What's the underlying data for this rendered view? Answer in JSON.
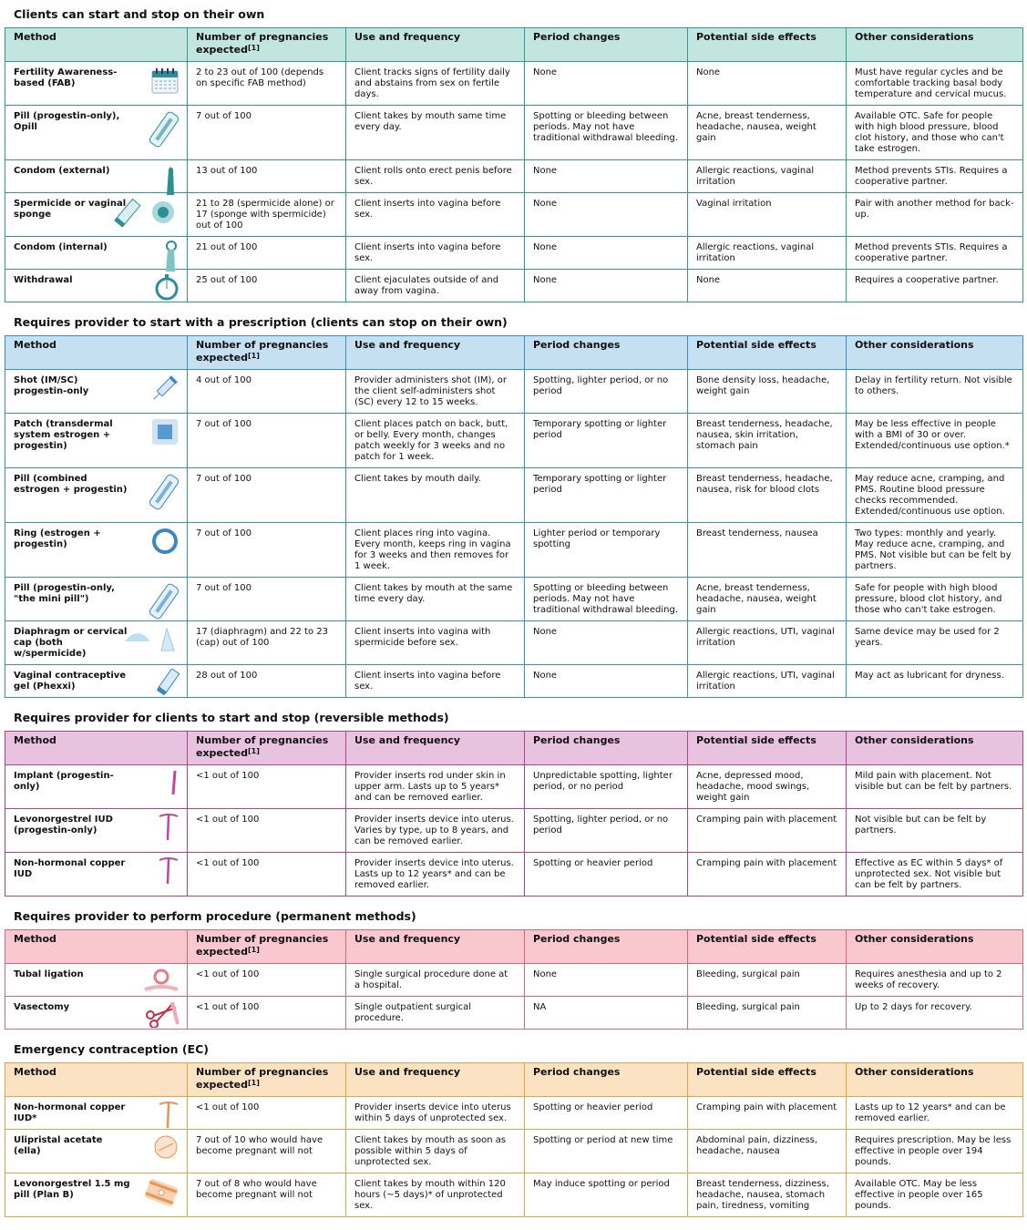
{
  "columns": {
    "method": "Method",
    "pregnancies": "Number of pregnancies expected",
    "footnote": "[1]",
    "use": "Use and frequency",
    "period": "Period changes",
    "side": "Potential side effects",
    "other": "Other considerations"
  },
  "sections": [
    {
      "title": "Clients can start and stop on their own",
      "header_bg": "#c2e6df",
      "border": "#2f9c8f",
      "icon_color": "#2b8f96",
      "rows": [
        {
          "method": "Fertility Awareness-based (FAB)",
          "icon": "calendar-icon",
          "pregnancies": "2 to 23 out of 100 (depends on specific FAB method)",
          "use": "Client tracks signs of fertility daily and abstains from sex on fertile days.",
          "period": "None",
          "side": "None",
          "other": "Must have regular cycles and be comfortable tracking basal body temperature and cervical mucus."
        },
        {
          "method": "Pill (progestin-only), Opill",
          "icon": "pill-pack-icon",
          "pregnancies": "7 out of 100",
          "use": "Client takes by mouth same time every day.",
          "period": "Spotting or bleeding between periods. May not have traditional withdrawal bleeding.",
          "side": "Acne, breast tenderness, headache, nausea, weight gain",
          "other": "Available OTC. Safe for people with high blood pressure, blood clot history, and those who can't take estrogen."
        },
        {
          "method": "Condom (external)",
          "icon": "external-condom-icon",
          "pregnancies": "13 out of 100",
          "use": "Client rolls onto erect penis before sex.",
          "period": "None",
          "side": "Allergic reactions, vaginal irritation",
          "other": "Method prevents STIs. Requires a cooperative partner."
        },
        {
          "method": "Spermicide or vaginal sponge",
          "icon": "spermicide-sponge-icon",
          "pregnancies": "21 to 28 (spermicide alone) or 17 (sponge with spermicide) out of 100",
          "use": "Client inserts into vagina before sex.",
          "period": "None",
          "side": "Vaginal irritation",
          "other": "Pair with another method for back-up."
        },
        {
          "method": "Condom (internal)",
          "icon": "internal-condom-icon",
          "pregnancies": "21 out of 100",
          "use": "Client inserts into vagina before sex.",
          "period": "None",
          "side": "Allergic reactions, vaginal irritation",
          "other": "Method prevents STIs. Requires a cooperative partner."
        },
        {
          "method": "Withdrawal",
          "icon": "stopwatch-icon",
          "pregnancies": "25 out of 100",
          "use": "Client ejaculates outside of and away from vagina.",
          "period": "None",
          "side": "None",
          "other": "Requires a cooperative partner."
        }
      ]
    },
    {
      "title": "Requires provider to start with a prescription (clients can stop on their own)",
      "header_bg": "#c4e0f1",
      "border": "#3b8fc8",
      "icon_color": "#3a86c8",
      "rows": [
        {
          "method": "Shot (IM/SC) progestin-only",
          "icon": "syringe-icon",
          "pregnancies": "4 out of 100",
          "use": "Provider administers shot (IM), or the client self-administers shot (SC) every 12 to 15 weeks.",
          "period": "Spotting, lighter period, or no period",
          "side": "Bone density loss, headache, weight gain",
          "other": "Delay in fertility return. Not visible to others."
        },
        {
          "method": "Patch (transdermal system estrogen + progestin)",
          "icon": "patch-icon",
          "pregnancies": "7 out of 100",
          "use": "Client places patch on back, butt, or belly. Every month, changes patch weekly for 3 weeks and no patch for 1 week.",
          "period": "Temporary spotting or lighter period",
          "side": "Breast tenderness, headache, nausea, skin irritation, stomach pain",
          "other": "May be less effective in people with a BMI of 30 or over. Extended/continuous use option.*"
        },
        {
          "method": "Pill (combined estrogen + progestin)",
          "icon": "pill-pack-icon",
          "pregnancies": "7 out of 100",
          "use": "Client takes by mouth daily.",
          "period": "Temporary spotting or lighter period",
          "side": "Breast tenderness, headache, nausea, risk for blood clots",
          "other": "May reduce acne, cramping, and PMS. Routine blood pressure checks recommended. Extended/continuous use option."
        },
        {
          "method": "Ring (estrogen + progestin)",
          "icon": "ring-icon",
          "pregnancies": "7 out of 100",
          "use": "Client places ring into vagina. Every month, keeps ring in vagina for 3 weeks and then removes for 1 week.",
          "period": "Lighter period or temporary spotting",
          "side": "Breast tenderness, nausea",
          "other": "Two types: monthly and yearly. May reduce acne, cramping, and PMS. Not visible but can be felt by partners."
        },
        {
          "method": "Pill (progestin-only, \"the mini pill\")",
          "icon": "pill-pack-icon",
          "pregnancies": "7 out of 100",
          "use": "Client takes by mouth at the same time every day.",
          "period": "Spotting or bleeding between periods. May not have traditional withdrawal bleeding.",
          "side": "Acne, breast tenderness, headache, nausea, weight gain",
          "other": "Safe for people with high blood pressure, blood clot history, and those who can't take estrogen."
        },
        {
          "method": "Diaphragm or cervical cap (both w/spermicide)",
          "icon": "diaphragm-icon",
          "pregnancies": "17 (diaphragm) and 22 to 23 (cap) out of 100",
          "use": "Client inserts into vagina with spermicide before sex.",
          "period": "None",
          "side": "Allergic reactions, UTI, vaginal irritation",
          "other": "Same device may be used for 2 years."
        },
        {
          "method": "Vaginal contraceptive gel (Phexxi)",
          "icon": "gel-tube-icon",
          "pregnancies": "28 out of 100",
          "use": "Client inserts into vagina before sex.",
          "period": "None",
          "side": "Allergic reactions, UTI, vaginal irritation",
          "other": "May act as lubricant for dryness."
        }
      ]
    },
    {
      "title": "Requires provider for clients to start and stop (reversible methods)",
      "header_bg": "#e7c3df",
      "border": "#a8478f",
      "icon_color": "#c0489a",
      "rows": [
        {
          "method": "Implant (progestin-only)",
          "icon": "implant-rod-icon",
          "pregnancies": "<1 out of 100",
          "use": "Provider inserts rod under skin in upper arm. Lasts up to 5 years* and can be removed earlier.",
          "period": "Unpredictable spotting, lighter period, or no period",
          "side": "Acne, depressed mood, headache, mood swings, weight gain",
          "other": "Mild pain with placement. Not visible but can be felt by partners."
        },
        {
          "method": "Levonorgestrel IUD (progestin-only)",
          "icon": "iud-icon",
          "pregnancies": "<1 out of 100",
          "use": "Provider inserts device into uterus. Varies by type, up to 8 years, and can be removed earlier.",
          "period": "Spotting, lighter period, or no period",
          "side": "Cramping pain with placement",
          "other": "Not visible but can be felt by partners."
        },
        {
          "method": "Non-hormonal copper IUD",
          "icon": "iud-icon",
          "pregnancies": "<1 out of 100",
          "use": "Provider inserts device into uterus. Lasts up to 12 years* and can be removed earlier.",
          "period": "Spotting or heavier period",
          "side": "Cramping pain with placement",
          "other": "Effective as EC within 5 days* of unprotected sex. Not visible but can be felt by partners."
        }
      ]
    },
    {
      "title": "Requires provider to perform procedure (permanent methods)",
      "header_bg": "#f8c8ce",
      "border": "#d26c7c",
      "icon_color": "#e07c86",
      "rows": [
        {
          "method": "Tubal ligation",
          "icon": "tubal-ligation-icon",
          "pregnancies": "<1 out of 100",
          "use": "Single surgical procedure done at a hospital.",
          "period": "None",
          "side": "Bleeding, surgical pain",
          "other": "Requires anesthesia and up to 2 weeks of recovery."
        },
        {
          "method": "Vasectomy",
          "icon": "scissors-icon",
          "pregnancies": "<1 out of 100",
          "use": "Single outpatient surgical procedure.",
          "period": "NA",
          "side": "Bleeding, surgical pain",
          "other": "Up to 2 days for recovery."
        }
      ]
    },
    {
      "title": "Emergency contraception (EC)",
      "header_bg": "#fbe2c2",
      "border": "#e4a345",
      "icon_color": "#e7945a",
      "rows": [
        {
          "method": "Non-hormonal copper IUD*",
          "icon": "iud-icon",
          "pregnancies": "<1 out of 100",
          "use": "Provider inserts device into uterus within 5 days of unprotected sex.",
          "period": "Spotting or heavier period",
          "side": "Cramping pain with placement",
          "other": "Lasts up to 12 years* and can be removed earlier."
        },
        {
          "method": "Ulipristal acetate (ella)",
          "icon": "pill-icon",
          "pregnancies": "7 out of 10 who would have become pregnant will not",
          "use": "Client takes by mouth as soon as possible within 5 days of unprotected sex.",
          "period": "Spotting or period at new time",
          "side": "Abdominal pain, dizziness, headache, nausea",
          "other": "Requires prescription. May be less effective in people over 194 pounds."
        },
        {
          "method": "Levonorgestrel 1.5 mg pill (Plan B)",
          "icon": "pill-blister-icon",
          "pregnancies": "7 out of 8 who would have become pregnant will not",
          "use": "Client takes by mouth within 120 hours (~5 days)* of unprotected sex.",
          "period": "May induce spotting or period",
          "side": "Breast tenderness, dizziness, headache, nausea, stomach pain, tiredness, vomiting",
          "other": "Available OTC. May be less effective in people over 165 pounds."
        }
      ]
    }
  ]
}
